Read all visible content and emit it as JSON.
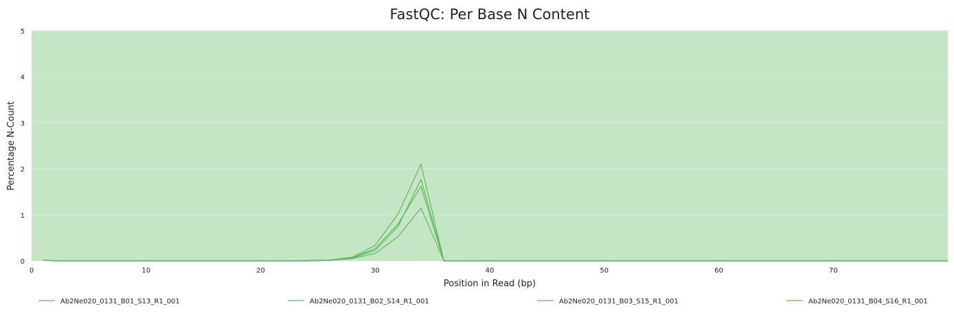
{
  "chart_data": {
    "type": "line",
    "title": "FastQC: Per Base N Content",
    "xlabel": "Position in Read (bp)",
    "ylabel": "Percentage N-Count",
    "xlim": [
      0,
      80
    ],
    "ylim": [
      0,
      5
    ],
    "xticks": [
      0,
      10,
      20,
      30,
      40,
      50,
      60,
      70
    ],
    "yticks": [
      0,
      1,
      2,
      3,
      4,
      5
    ],
    "grid": true,
    "legend_position": "bottom",
    "background_color": "#c4e6c4",
    "gridline_color": "#dce8dc",
    "series_color": "#5cb85c",
    "x": [
      1,
      2,
      3,
      4,
      5,
      6,
      7,
      8,
      9,
      10,
      12,
      14,
      16,
      18,
      20,
      22,
      24,
      26,
      28,
      30,
      32,
      34,
      36,
      38,
      40,
      45,
      50,
      55,
      60,
      65,
      70,
      75,
      80
    ],
    "series": [
      {
        "name": "Ab2Ne020_0131_B01_S13_R1_001",
        "values": [
          0.02,
          0,
          0,
          0,
          0,
          0,
          0,
          0,
          0,
          0,
          0,
          0,
          0,
          0,
          0,
          0,
          0,
          0.01,
          0.07,
          0.27,
          0.8,
          1.62,
          0,
          0,
          0,
          0,
          0,
          0,
          0,
          0,
          0,
          0,
          0
        ]
      },
      {
        "name": "Ab2Ne020_0131_B02_S14_R1_001",
        "values": [
          0.02,
          0,
          0,
          0,
          0,
          0,
          0,
          0,
          0,
          0,
          0,
          0,
          0,
          0,
          0,
          0,
          0.01,
          0.02,
          0.08,
          0.34,
          1.02,
          2.1,
          0,
          0,
          0,
          0,
          0,
          0,
          0,
          0,
          0,
          0,
          0
        ]
      },
      {
        "name": "Ab2Ne020_0131_B03_S15_R1_001",
        "values": [
          0.02,
          0,
          0,
          0,
          0,
          0,
          0,
          0,
          0,
          0,
          0,
          0,
          0,
          0,
          0,
          0,
          0,
          0.01,
          0.05,
          0.16,
          0.53,
          1.15,
          0,
          0,
          0,
          0,
          0,
          0,
          0,
          0,
          0,
          0,
          0
        ]
      },
      {
        "name": "Ab2Ne020_0131_B04_S16_R1_001",
        "values": [
          0.02,
          0,
          0,
          0,
          0,
          0,
          0,
          0,
          0,
          0,
          0,
          0,
          0,
          0,
          0,
          0,
          0,
          0.01,
          0.06,
          0.23,
          0.75,
          1.77,
          0,
          0,
          0,
          0,
          0,
          0,
          0,
          0,
          0,
          0,
          0
        ]
      }
    ]
  }
}
